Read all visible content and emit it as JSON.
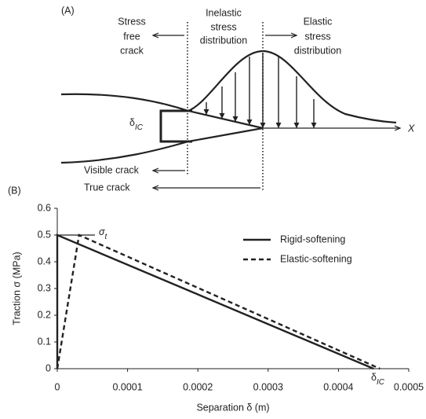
{
  "panel_a": {
    "label": "(A)",
    "stress_free": [
      "Stress",
      "free",
      "crack"
    ],
    "inelastic": [
      "Inelastic",
      "stress",
      "distribution"
    ],
    "elastic": [
      "Elastic",
      "stress",
      "distribution"
    ],
    "delta": {
      "symbol": "δ",
      "subscript": "IC"
    },
    "axis": "X",
    "visible_crack": "Visible crack",
    "true_crack": "True crack"
  },
  "chart_data": {
    "type": "line",
    "panel_label": "(B)",
    "x_label": "Separation δ (m)",
    "y_label": "Traction σ (MPa)",
    "xlim": [
      0,
      0.0005
    ],
    "ylim": [
      0,
      0.6
    ],
    "xticks": [
      0,
      0.0001,
      0.0002,
      0.0003,
      0.0004,
      0.0005
    ],
    "yticks": [
      0,
      0.1,
      0.2,
      0.3,
      0.4,
      0.5,
      0.6
    ],
    "legend": "upper right",
    "series": [
      {
        "name": "Rigid-softening",
        "color": "#222222",
        "line_style": "solid",
        "x": [
          0,
          0,
          0.00045
        ],
        "values": [
          0,
          0.5,
          0
        ]
      },
      {
        "name": "Elastic-softening",
        "color": "#222222",
        "line_style": "dashed",
        "x": [
          0,
          3.1e-05,
          0.000459
        ],
        "values": [
          0,
          0.5,
          0
        ]
      }
    ],
    "annotations": {
      "sigma_t": {
        "symbol": "σ",
        "subscript": "t"
      },
      "delta_ic": {
        "symbol": "δ",
        "subscript": "IC"
      }
    }
  }
}
